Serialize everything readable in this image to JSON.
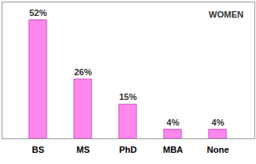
{
  "chart_data": {
    "type": "bar",
    "title": "WOMEN",
    "categories": [
      "BS",
      "MS",
      "PhD",
      "MBA",
      "None"
    ],
    "values": [
      52,
      26,
      15,
      4,
      4
    ],
    "value_labels": [
      "52%",
      "26%",
      "15%",
      "4%",
      "4%"
    ],
    "color": "#ff88ee",
    "ylim": [
      0,
      60
    ],
    "data_labels": true,
    "tick_labels": "x"
  }
}
